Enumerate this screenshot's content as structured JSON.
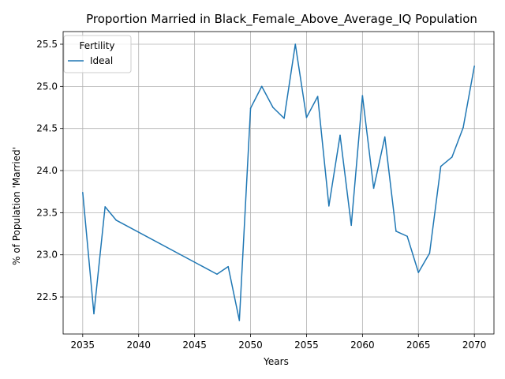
{
  "chart_data": {
    "type": "line",
    "title": "Proportion Married in Black_Female_Above_Average_IQ Population",
    "xlabel": "Years",
    "ylabel": "% of Population 'Married'",
    "xlim": [
      2033.25,
      2071.75
    ],
    "ylim": [
      22.06,
      25.65
    ],
    "xticks": [
      2035,
      2040,
      2045,
      2050,
      2055,
      2060,
      2065,
      2070
    ],
    "yticks": [
      22.5,
      23.0,
      23.5,
      24.0,
      24.5,
      25.0,
      25.5
    ],
    "grid": true,
    "legend": {
      "title": "Fertility",
      "placement": "top-left"
    },
    "series": [
      {
        "name": "Ideal",
        "color": "#1f77b4",
        "x": [
          2035,
          2036,
          2037,
          2038,
          2047,
          2048,
          2049,
          2050,
          2051,
          2052,
          2053,
          2054,
          2055,
          2056,
          2057,
          2058,
          2059,
          2060,
          2061,
          2062,
          2063,
          2064,
          2065,
          2066,
          2067,
          2068,
          2069,
          2070
        ],
        "y": [
          23.74,
          22.3,
          23.57,
          23.41,
          22.77,
          22.86,
          22.22,
          24.74,
          25.0,
          24.75,
          24.62,
          25.5,
          24.63,
          24.88,
          23.58,
          24.42,
          23.35,
          24.89,
          23.79,
          24.4,
          23.28,
          23.22,
          22.79,
          23.02,
          24.05,
          24.16,
          24.51,
          25.24
        ]
      }
    ]
  }
}
